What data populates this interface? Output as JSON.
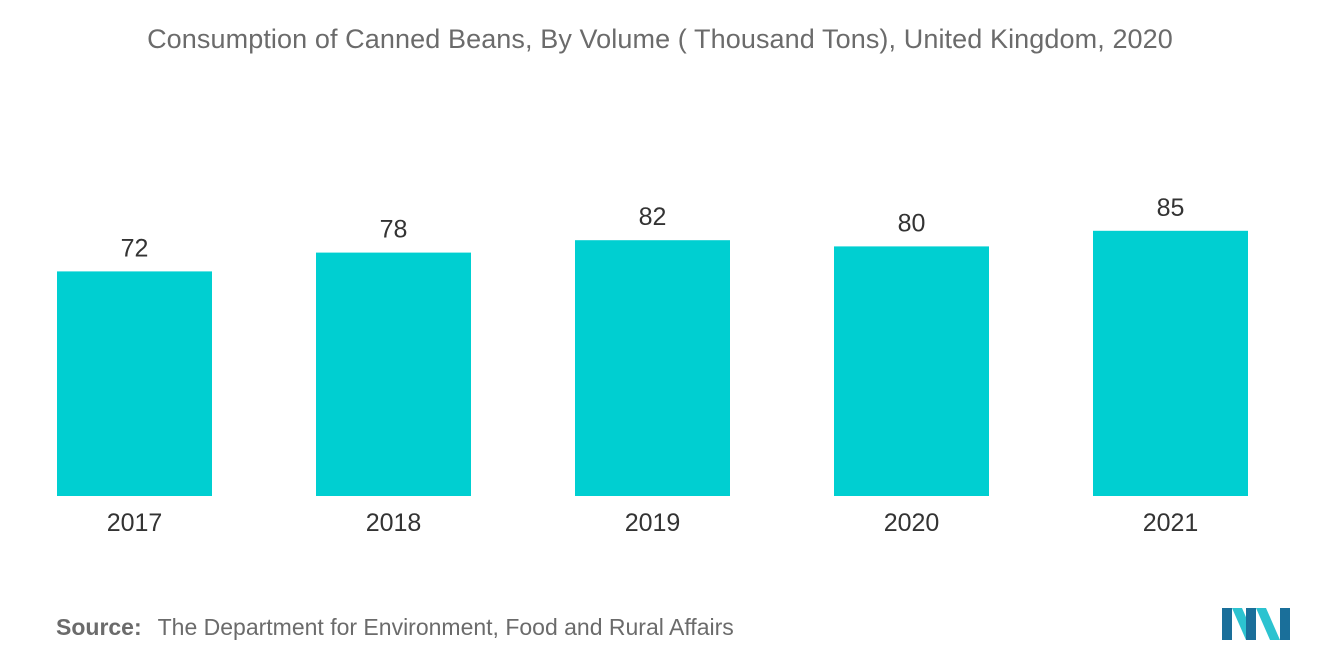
{
  "colors": {
    "bar": "#00cfd1",
    "title": "#6b6b6b",
    "text": "#333333",
    "logo_dark": "#1a6f9a",
    "logo_light": "#2cc3d0"
  },
  "chart_data": {
    "type": "bar",
    "title": "Consumption of Canned Beans, By Volume ( Thousand Tons), United Kingdom, 2020",
    "categories": [
      "2017",
      "2018",
      "2019",
      "2020",
      "2021"
    ],
    "values": [
      72,
      78,
      82,
      80,
      85
    ],
    "xlabel": "",
    "ylabel": "",
    "ylim": [
      0,
      100
    ],
    "grid": false,
    "legend": "none",
    "data_labels": true
  },
  "footer": {
    "source_label": "Source:",
    "source_text": "The Department for Environment, Food and Rural Affairs",
    "logo_icon": "mordor-intelligence-logo-icon"
  }
}
